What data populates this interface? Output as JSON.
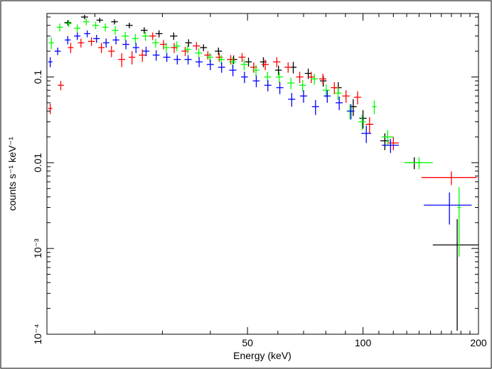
{
  "chart_data": {
    "type": "scatter",
    "xlabel": "Energy (keV)",
    "ylabel": "counts s⁻¹ keV⁻¹",
    "x_scale": "log",
    "y_scale": "log",
    "xlim": [
      15,
      200
    ],
    "ylim": [
      0.0001,
      0.55
    ],
    "x_ticks": [
      {
        "value": 50,
        "label": "50"
      },
      {
        "value": 100,
        "label": "100"
      },
      {
        "value": 200,
        "label": "200"
      }
    ],
    "y_ticks": [
      {
        "value": 0.1,
        "label": "0.1"
      },
      {
        "value": 0.01,
        "label": "0.01"
      },
      {
        "value": 0.001,
        "label": "10⁻³"
      },
      {
        "value": 0.0001,
        "label": "10⁻⁴"
      }
    ],
    "grid": false,
    "legend": "none",
    "series": [
      {
        "color": "#000000",
        "points": [
          {
            "x": 17,
            "y": 0.43,
            "xerr": 0.35,
            "yerr": 0.03
          },
          {
            "x": 18.8,
            "y": 0.5,
            "xerr": 0.4,
            "yerr": 0.03
          },
          {
            "x": 20.6,
            "y": 0.46,
            "xerr": 0.4,
            "yerr": 0.03
          },
          {
            "x": 22.5,
            "y": 0.44,
            "xerr": 0.45,
            "yerr": 0.03
          },
          {
            "x": 24.6,
            "y": 0.4,
            "xerr": 0.5,
            "yerr": 0.03
          },
          {
            "x": 26.9,
            "y": 0.35,
            "xerr": 0.55,
            "yerr": 0.03
          },
          {
            "x": 29.4,
            "y": 0.32,
            "xerr": 0.6,
            "yerr": 0.03
          },
          {
            "x": 32.1,
            "y": 0.3,
            "xerr": 0.7,
            "yerr": 0.03
          },
          {
            "x": 35.1,
            "y": 0.25,
            "xerr": 0.7,
            "yerr": 0.025
          },
          {
            "x": 38.4,
            "y": 0.22,
            "xerr": 0.8,
            "yerr": 0.02
          },
          {
            "x": 42,
            "y": 0.2,
            "xerr": 0.9,
            "yerr": 0.02
          },
          {
            "x": 46,
            "y": 0.16,
            "xerr": 1.0,
            "yerr": 0.018
          },
          {
            "x": 50.3,
            "y": 0.15,
            "xerr": 1.0,
            "yerr": 0.018
          },
          {
            "x": 55,
            "y": 0.15,
            "xerr": 1.1,
            "yerr": 0.02
          },
          {
            "x": 60.2,
            "y": 0.12,
            "xerr": 1.2,
            "yerr": 0.015
          },
          {
            "x": 65.8,
            "y": 0.13,
            "xerr": 1.3,
            "yerr": 0.02
          },
          {
            "x": 72,
            "y": 0.11,
            "xerr": 1.5,
            "yerr": 0.015
          },
          {
            "x": 78.8,
            "y": 0.09,
            "xerr": 1.6,
            "yerr": 0.013
          },
          {
            "x": 86.2,
            "y": 0.075,
            "xerr": 1.8,
            "yerr": 0.012
          },
          {
            "x": 94.3,
            "y": 0.045,
            "xerr": 2.0,
            "yerr": 0.01
          },
          {
            "x": 100,
            "y": 0.033,
            "xerr": 2.2,
            "yerr": 0.008
          },
          {
            "x": 114,
            "y": 0.018,
            "xerr": 3.0,
            "yerr": 0.004
          },
          {
            "x": 136,
            "y": 0.01,
            "xerr": 6.0,
            "yerr": 0.0016
          },
          {
            "x": 176,
            "y": 0.0011,
            "xerr": 24,
            "yerr_low": 0.00099,
            "yerr_high": 0.0011
          }
        ]
      },
      {
        "color": "#ff0000",
        "points": [
          {
            "x": 15.3,
            "y": 0.043,
            "xerr": 0.2,
            "yerr": 0.006
          },
          {
            "x": 16.3,
            "y": 0.08,
            "xerr": 0.3,
            "yerr": 0.01
          },
          {
            "x": 17.3,
            "y": 0.22,
            "xerr": 0.3,
            "yerr": 0.03
          },
          {
            "x": 18.4,
            "y": 0.25,
            "xerr": 0.35,
            "yerr": 0.03
          },
          {
            "x": 19.6,
            "y": 0.26,
            "xerr": 0.4,
            "yerr": 0.03
          },
          {
            "x": 20.8,
            "y": 0.22,
            "xerr": 0.4,
            "yerr": 0.03
          },
          {
            "x": 22.1,
            "y": 0.2,
            "xerr": 0.45,
            "yerr": 0.03
          },
          {
            "x": 23.5,
            "y": 0.16,
            "xerr": 0.5,
            "yerr": 0.03
          },
          {
            "x": 25,
            "y": 0.17,
            "xerr": 0.5,
            "yerr": 0.03
          },
          {
            "x": 26.6,
            "y": 0.18,
            "xerr": 0.55,
            "yerr": 0.03
          },
          {
            "x": 28.3,
            "y": 0.3,
            "xerr": 0.6,
            "yerr": 0.03
          },
          {
            "x": 30.2,
            "y": 0.24,
            "xerr": 0.65,
            "yerr": 0.03
          },
          {
            "x": 32.2,
            "y": 0.22,
            "xerr": 0.7,
            "yerr": 0.03
          },
          {
            "x": 34.4,
            "y": 0.2,
            "xerr": 0.75,
            "yerr": 0.025
          },
          {
            "x": 36.8,
            "y": 0.23,
            "xerr": 0.8,
            "yerr": 0.025
          },
          {
            "x": 39.4,
            "y": 0.18,
            "xerr": 0.85,
            "yerr": 0.02
          },
          {
            "x": 42.2,
            "y": 0.17,
            "xerr": 0.9,
            "yerr": 0.02
          },
          {
            "x": 45.2,
            "y": 0.16,
            "xerr": 1.0,
            "yerr": 0.02
          },
          {
            "x": 48.4,
            "y": 0.17,
            "xerr": 1.0,
            "yerr": 0.02
          },
          {
            "x": 51.9,
            "y": 0.13,
            "xerr": 1.1,
            "yerr": 0.018
          },
          {
            "x": 55.6,
            "y": 0.14,
            "xerr": 1.2,
            "yerr": 0.02
          },
          {
            "x": 59.6,
            "y": 0.15,
            "xerr": 1.3,
            "yerr": 0.02
          },
          {
            "x": 63.8,
            "y": 0.13,
            "xerr": 1.4,
            "yerr": 0.018
          },
          {
            "x": 68.4,
            "y": 0.1,
            "xerr": 1.5,
            "yerr": 0.015
          },
          {
            "x": 73.3,
            "y": 0.1,
            "xerr": 1.6,
            "yerr": 0.015
          },
          {
            "x": 78.6,
            "y": 0.095,
            "xerr": 1.7,
            "yerr": 0.014
          },
          {
            "x": 84.2,
            "y": 0.075,
            "xerr": 1.8,
            "yerr": 0.012
          },
          {
            "x": 90.3,
            "y": 0.06,
            "xerr": 2.0,
            "yerr": 0.01
          },
          {
            "x": 96.8,
            "y": 0.058,
            "xerr": 2.1,
            "yerr": 0.01
          },
          {
            "x": 104,
            "y": 0.028,
            "xerr": 2.5,
            "yerr": 0.006
          },
          {
            "x": 120,
            "y": 0.017,
            "xerr": 4.0,
            "yerr": 0.003
          },
          {
            "x": 170,
            "y": 0.0067,
            "xerr": 28,
            "yerr": 0.0012
          }
        ]
      },
      {
        "color": "#00ff00",
        "points": [
          {
            "x": 15.4,
            "y": 0.25,
            "xerr": 0.25,
            "yerr": 0.04
          },
          {
            "x": 16.2,
            "y": 0.38,
            "xerr": 0.3,
            "yerr": 0.04
          },
          {
            "x": 17.1,
            "y": 0.42,
            "xerr": 0.3,
            "yerr": 0.04
          },
          {
            "x": 18,
            "y": 0.37,
            "xerr": 0.35,
            "yerr": 0.04
          },
          {
            "x": 19,
            "y": 0.44,
            "xerr": 0.35,
            "yerr": 0.04
          },
          {
            "x": 20.1,
            "y": 0.4,
            "xerr": 0.4,
            "yerr": 0.04
          },
          {
            "x": 21.3,
            "y": 0.38,
            "xerr": 0.4,
            "yerr": 0.04
          },
          {
            "x": 22.6,
            "y": 0.35,
            "xerr": 0.45,
            "yerr": 0.04
          },
          {
            "x": 24,
            "y": 0.3,
            "xerr": 0.5,
            "yerr": 0.035
          },
          {
            "x": 25.5,
            "y": 0.28,
            "xerr": 0.5,
            "yerr": 0.035
          },
          {
            "x": 27.1,
            "y": 0.3,
            "xerr": 0.55,
            "yerr": 0.035
          },
          {
            "x": 28.8,
            "y": 0.25,
            "xerr": 0.6,
            "yerr": 0.03
          },
          {
            "x": 30.7,
            "y": 0.22,
            "xerr": 0.65,
            "yerr": 0.03
          },
          {
            "x": 32.7,
            "y": 0.23,
            "xerr": 0.7,
            "yerr": 0.03
          },
          {
            "x": 34.9,
            "y": 0.21,
            "xerr": 0.75,
            "yerr": 0.025
          },
          {
            "x": 37.3,
            "y": 0.19,
            "xerr": 0.8,
            "yerr": 0.025
          },
          {
            "x": 39.9,
            "y": 0.17,
            "xerr": 0.85,
            "yerr": 0.02
          },
          {
            "x": 42.7,
            "y": 0.16,
            "xerr": 0.9,
            "yerr": 0.02
          },
          {
            "x": 45.7,
            "y": 0.15,
            "xerr": 1.0,
            "yerr": 0.02
          },
          {
            "x": 49,
            "y": 0.14,
            "xerr": 1.0,
            "yerr": 0.02
          },
          {
            "x": 52.6,
            "y": 0.12,
            "xerr": 1.1,
            "yerr": 0.018
          },
          {
            "x": 56.4,
            "y": 0.1,
            "xerr": 1.2,
            "yerr": 0.015
          },
          {
            "x": 60.5,
            "y": 0.1,
            "xerr": 1.3,
            "yerr": 0.015
          },
          {
            "x": 64.9,
            "y": 0.085,
            "xerr": 1.4,
            "yerr": 0.013
          },
          {
            "x": 69.6,
            "y": 0.08,
            "xerr": 1.5,
            "yerr": 0.012
          },
          {
            "x": 74.7,
            "y": 0.095,
            "xerr": 1.6,
            "yerr": 0.014
          },
          {
            "x": 80.2,
            "y": 0.07,
            "xerr": 1.7,
            "yerr": 0.012
          },
          {
            "x": 86.1,
            "y": 0.065,
            "xerr": 1.8,
            "yerr": 0.011
          },
          {
            "x": 92.5,
            "y": 0.04,
            "xerr": 2.0,
            "yerr": 0.008
          },
          {
            "x": 99.5,
            "y": 0.03,
            "xerr": 2.2,
            "yerr": 0.006
          },
          {
            "x": 107,
            "y": 0.045,
            "xerr": 1.5,
            "yerr": 0.008
          },
          {
            "x": 116,
            "y": 0.02,
            "xerr": 4.0,
            "yerr": 0.004
          },
          {
            "x": 140,
            "y": 0.01,
            "xerr": 12,
            "yerr": 0.0016
          },
          {
            "x": 178,
            "y": 0.003,
            "xerr": 2,
            "yerr": 0.0022
          }
        ]
      },
      {
        "color": "#0000ff",
        "points": [
          {
            "x": 15.3,
            "y": 0.15,
            "xerr": 0.2,
            "yerr": 0.02
          },
          {
            "x": 16,
            "y": 0.2,
            "xerr": 0.3,
            "yerr": 0.02
          },
          {
            "x": 17,
            "y": 0.27,
            "xerr": 0.3,
            "yerr": 0.03
          },
          {
            "x": 18,
            "y": 0.3,
            "xerr": 0.35,
            "yerr": 0.03
          },
          {
            "x": 19.1,
            "y": 0.32,
            "xerr": 0.35,
            "yerr": 0.03
          },
          {
            "x": 20.2,
            "y": 0.28,
            "xerr": 0.4,
            "yerr": 0.03
          },
          {
            "x": 21.4,
            "y": 0.25,
            "xerr": 0.4,
            "yerr": 0.03
          },
          {
            "x": 22.7,
            "y": 0.27,
            "xerr": 0.45,
            "yerr": 0.03
          },
          {
            "x": 24.1,
            "y": 0.24,
            "xerr": 0.5,
            "yerr": 0.03
          },
          {
            "x": 25.6,
            "y": 0.22,
            "xerr": 0.5,
            "yerr": 0.03
          },
          {
            "x": 27.2,
            "y": 0.2,
            "xerr": 0.55,
            "yerr": 0.025
          },
          {
            "x": 28.9,
            "y": 0.18,
            "xerr": 0.6,
            "yerr": 0.025
          },
          {
            "x": 30.8,
            "y": 0.17,
            "xerr": 0.65,
            "yerr": 0.02
          },
          {
            "x": 32.8,
            "y": 0.16,
            "xerr": 0.7,
            "yerr": 0.02
          },
          {
            "x": 35,
            "y": 0.16,
            "xerr": 0.75,
            "yerr": 0.02
          },
          {
            "x": 37.4,
            "y": 0.15,
            "xerr": 0.8,
            "yerr": 0.02
          },
          {
            "x": 40,
            "y": 0.14,
            "xerr": 0.85,
            "yerr": 0.02
          },
          {
            "x": 42.8,
            "y": 0.13,
            "xerr": 0.9,
            "yerr": 0.018
          },
          {
            "x": 45.8,
            "y": 0.12,
            "xerr": 1.0,
            "yerr": 0.018
          },
          {
            "x": 49.1,
            "y": 0.1,
            "xerr": 1.0,
            "yerr": 0.015
          },
          {
            "x": 52.7,
            "y": 0.09,
            "xerr": 1.1,
            "yerr": 0.014
          },
          {
            "x": 56.5,
            "y": 0.08,
            "xerr": 1.2,
            "yerr": 0.012
          },
          {
            "x": 60.7,
            "y": 0.075,
            "xerr": 1.3,
            "yerr": 0.012
          },
          {
            "x": 65.2,
            "y": 0.055,
            "xerr": 1.4,
            "yerr": 0.01
          },
          {
            "x": 70,
            "y": 0.06,
            "xerr": 1.5,
            "yerr": 0.01
          },
          {
            "x": 75.2,
            "y": 0.045,
            "xerr": 1.6,
            "yerr": 0.009
          },
          {
            "x": 80.7,
            "y": 0.06,
            "xerr": 1.7,
            "yerr": 0.01
          },
          {
            "x": 86.7,
            "y": 0.05,
            "xerr": 1.8,
            "yerr": 0.009
          },
          {
            "x": 93,
            "y": 0.04,
            "xerr": 2.0,
            "yerr": 0.008
          },
          {
            "x": 102,
            "y": 0.022,
            "xerr": 3.0,
            "yerr": 0.005
          },
          {
            "x": 118,
            "y": 0.016,
            "xerr": 6.0,
            "yerr": 0.003
          },
          {
            "x": 168,
            "y": 0.0032,
            "xerr": 24,
            "yerr": 0.0013
          }
        ]
      }
    ]
  }
}
